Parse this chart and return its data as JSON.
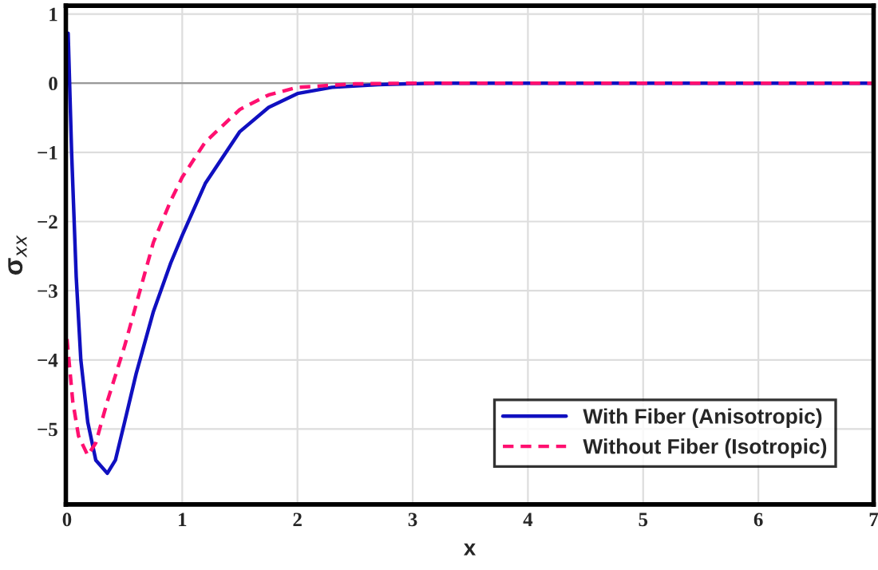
{
  "chart_data": {
    "type": "line",
    "xlabel": "x",
    "ylabel": "σ$_{xx}$",
    "xlim": [
      -0.01,
      7
    ],
    "ylim": [
      -6.09,
      1.12
    ],
    "xticks": [
      0,
      1,
      2,
      3,
      4,
      5,
      6,
      7
    ],
    "yticks": [
      {
        "value": -5,
        "label": "−5"
      },
      {
        "value": -4,
        "label": "−4"
      },
      {
        "value": -3,
        "label": "−3"
      },
      {
        "value": -2,
        "label": "−2"
      },
      {
        "value": -1,
        "label": "−1"
      },
      0,
      1
    ],
    "grid": true,
    "legend": "bottom right",
    "ref_lines": [
      {
        "axis": "y",
        "value": 0,
        "color": "#999999"
      }
    ],
    "series": [
      {
        "name": "With Fiber (Anisotropic)",
        "color": "#1010c0",
        "line_style": "solid",
        "x": [
          0.01,
          0.04,
          0.08,
          0.12,
          0.18,
          0.25,
          0.35,
          0.42,
          0.5,
          0.6,
          0.75,
          0.9,
          1.0,
          1.2,
          1.5,
          1.75,
          2,
          2.3,
          2.7,
          3.2,
          7
        ],
        "values": [
          0.72,
          -1,
          -2.8,
          -4,
          -4.9,
          -5.45,
          -5.64,
          -5.45,
          -4.9,
          -4.2,
          -3.3,
          -2.6,
          -2.2,
          -1.45,
          -0.7,
          -0.35,
          -0.15,
          -0.06,
          -0.02,
          0,
          0
        ]
      },
      {
        "name": "Without Fiber (Isotropic)",
        "color": "#ff1070",
        "line_style": "dashed",
        "x": [
          0,
          0.05,
          0.1,
          0.18,
          0.25,
          0.35,
          0.5,
          0.6,
          0.75,
          0.9,
          1.0,
          1.2,
          1.5,
          1.75,
          2,
          2.5,
          3,
          7
        ],
        "values": [
          -3.7,
          -4.6,
          -5.1,
          -5.38,
          -5.2,
          -4.6,
          -3.8,
          -3.2,
          -2.3,
          -1.7,
          -1.36,
          -0.85,
          -0.38,
          -0.17,
          -0.06,
          -0.01,
          0,
          0
        ]
      }
    ]
  }
}
